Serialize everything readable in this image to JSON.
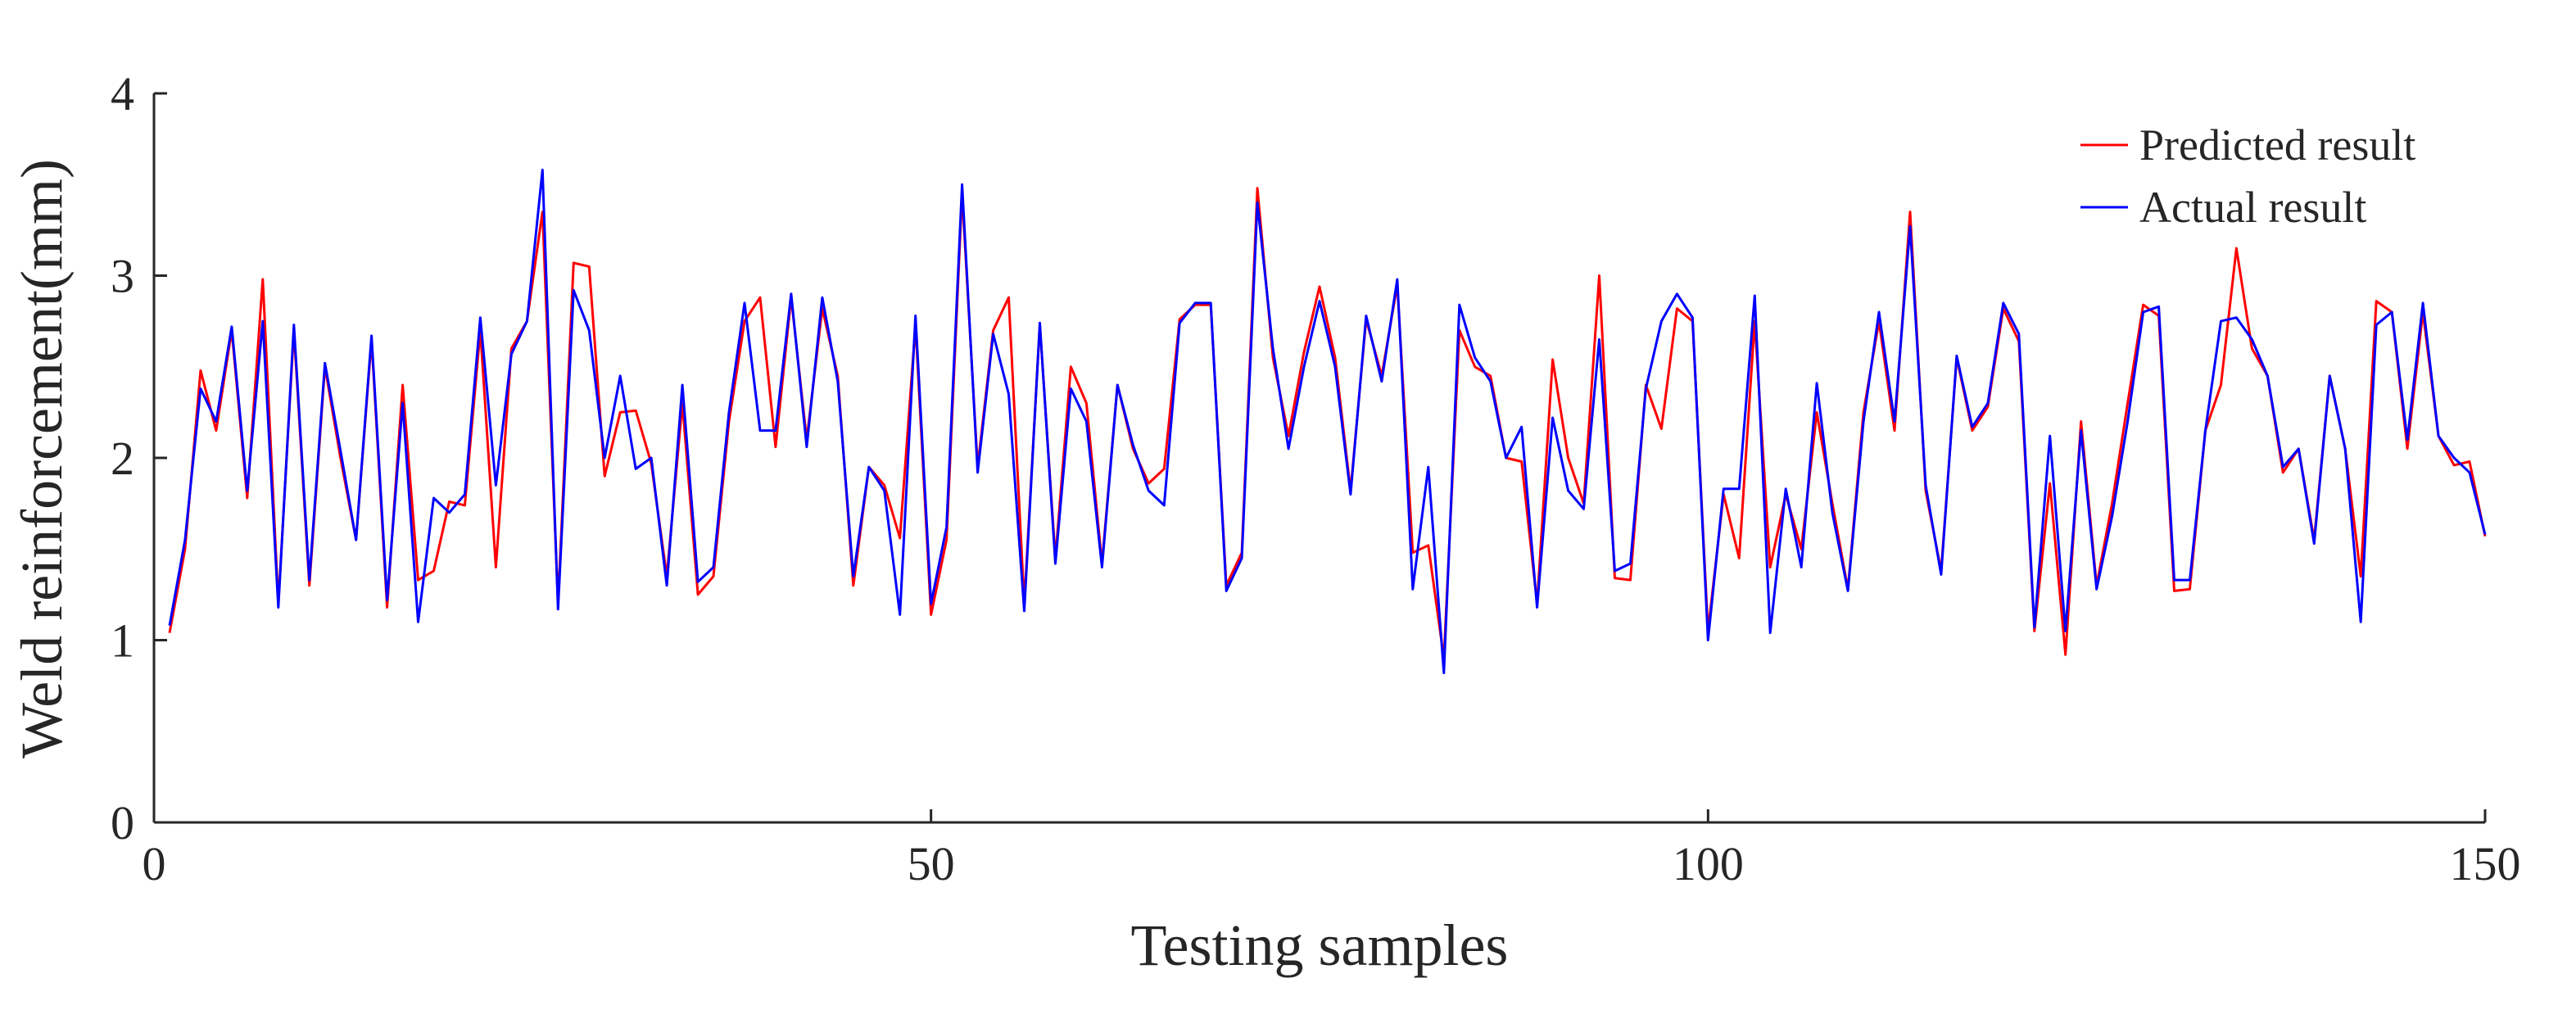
{
  "chart_data": {
    "type": "line",
    "xlabel": "Testing samples",
    "ylabel": "Weld reinforcement(mm)",
    "xlim": [
      0,
      150
    ],
    "ylim": [
      0,
      4
    ],
    "xticks": [
      0,
      50,
      100,
      150
    ],
    "yticks": [
      0,
      1,
      2,
      3,
      4
    ],
    "grid": false,
    "legend_position": "top-right",
    "x": [
      1,
      2,
      3,
      4,
      5,
      6,
      7,
      8,
      9,
      10,
      11,
      12,
      13,
      14,
      15,
      16,
      17,
      18,
      19,
      20,
      21,
      22,
      23,
      24,
      25,
      26,
      27,
      28,
      29,
      30,
      31,
      32,
      33,
      34,
      35,
      36,
      37,
      38,
      39,
      40,
      41,
      42,
      43,
      44,
      45,
      46,
      47,
      48,
      49,
      50,
      51,
      52,
      53,
      54,
      55,
      56,
      57,
      58,
      59,
      60,
      61,
      62,
      63,
      64,
      65,
      66,
      67,
      68,
      69,
      70,
      71,
      72,
      73,
      74,
      75,
      76,
      77,
      78,
      79,
      80,
      81,
      82,
      83,
      84,
      85,
      86,
      87,
      88,
      89,
      90,
      91,
      92,
      93,
      94,
      95,
      96,
      97,
      98,
      99,
      100,
      101,
      102,
      103,
      104,
      105,
      106,
      107,
      108,
      109,
      110,
      111,
      112,
      113,
      114,
      115,
      116,
      117,
      118,
      119,
      120,
      121,
      122,
      123,
      124,
      125,
      126,
      127,
      128,
      129,
      130,
      131,
      132,
      133,
      134,
      135,
      136,
      137,
      138,
      139,
      140,
      141,
      142,
      143,
      144,
      145,
      146,
      147,
      148,
      149,
      150
    ],
    "series": [
      {
        "name": "Predicted result",
        "color": "#ff0000",
        "values": [
          1.04,
          1.5,
          2.48,
          2.15,
          2.7,
          1.78,
          2.98,
          1.2,
          2.7,
          1.3,
          2.5,
          2.0,
          1.55,
          2.65,
          1.18,
          2.4,
          1.33,
          1.38,
          1.76,
          1.74,
          2.7,
          1.4,
          2.6,
          2.75,
          3.35,
          1.2,
          3.07,
          3.05,
          1.9,
          2.25,
          2.26,
          1.97,
          1.35,
          2.3,
          1.25,
          1.35,
          2.2,
          2.75,
          2.88,
          2.06,
          2.88,
          2.1,
          2.82,
          2.45,
          1.3,
          1.95,
          1.85,
          1.56,
          2.73,
          1.14,
          1.55,
          3.45,
          1.95,
          2.7,
          2.88,
          1.2,
          2.73,
          1.45,
          2.5,
          2.3,
          1.42,
          2.4,
          2.05,
          1.86,
          1.94,
          2.76,
          2.84,
          2.84,
          1.3,
          1.48,
          3.48,
          2.55,
          2.12,
          2.58,
          2.94,
          2.55,
          1.82,
          2.76,
          2.45,
          2.95,
          1.48,
          1.52,
          0.9,
          2.7,
          2.5,
          2.45,
          2.0,
          1.98,
          1.2,
          2.54,
          2.0,
          1.75,
          3.0,
          1.34,
          1.33,
          2.4,
          2.16,
          2.82,
          2.75,
          1.05,
          1.8,
          1.45,
          2.75,
          1.4,
          1.8,
          1.5,
          2.25,
          1.75,
          1.28,
          2.25,
          2.75,
          2.15,
          3.35,
          1.82,
          1.38,
          2.55,
          2.15,
          2.28,
          2.82,
          2.64,
          1.05,
          1.86,
          0.92,
          2.2,
          1.3,
          1.75,
          2.3,
          2.84,
          2.78,
          1.27,
          1.28,
          2.15,
          2.4,
          3.15,
          2.6,
          2.45,
          1.92,
          2.05,
          1.55,
          2.45,
          2.05,
          1.35,
          2.86,
          2.8,
          2.05,
          2.8,
          2.12,
          1.96,
          1.98,
          1.57
        ]
      },
      {
        "name": "Actual result",
        "color": "#0000ff",
        "values": [
          1.08,
          1.55,
          2.38,
          2.2,
          2.72,
          1.82,
          2.75,
          1.18,
          2.73,
          1.33,
          2.52,
          2.04,
          1.55,
          2.67,
          1.22,
          2.3,
          1.1,
          1.78,
          1.7,
          1.8,
          2.77,
          1.85,
          2.57,
          2.75,
          3.58,
          1.17,
          2.92,
          2.7,
          2.0,
          2.45,
          1.94,
          2.0,
          1.3,
          2.4,
          1.32,
          1.4,
          2.25,
          2.85,
          2.15,
          2.15,
          2.9,
          2.06,
          2.88,
          2.42,
          1.35,
          1.95,
          1.82,
          1.14,
          2.78,
          1.2,
          1.62,
          3.5,
          1.92,
          2.68,
          2.35,
          1.16,
          2.74,
          1.42,
          2.38,
          2.2,
          1.4,
          2.4,
          2.07,
          1.82,
          1.74,
          2.74,
          2.85,
          2.85,
          1.27,
          1.45,
          3.4,
          2.6,
          2.05,
          2.5,
          2.86,
          2.5,
          1.8,
          2.78,
          2.42,
          2.98,
          1.28,
          1.95,
          0.82,
          2.84,
          2.55,
          2.42,
          2.0,
          2.17,
          1.18,
          2.22,
          1.82,
          1.72,
          2.65,
          1.38,
          1.42,
          2.38,
          2.75,
          2.9,
          2.77,
          1.0,
          1.83,
          1.83,
          2.89,
          1.04,
          1.83,
          1.4,
          2.41,
          1.7,
          1.27,
          2.2,
          2.8,
          2.2,
          3.27,
          1.85,
          1.36,
          2.56,
          2.17,
          2.3,
          2.85,
          2.68,
          1.07,
          2.12,
          1.05,
          2.15,
          1.28,
          1.68,
          2.2,
          2.8,
          2.83,
          1.33,
          1.33,
          2.15,
          2.75,
          2.77,
          2.65,
          2.45,
          1.95,
          2.05,
          1.53,
          2.45,
          2.05,
          1.1,
          2.73,
          2.8,
          2.1,
          2.85,
          2.12,
          2.0,
          1.92,
          1.58
        ]
      }
    ]
  }
}
